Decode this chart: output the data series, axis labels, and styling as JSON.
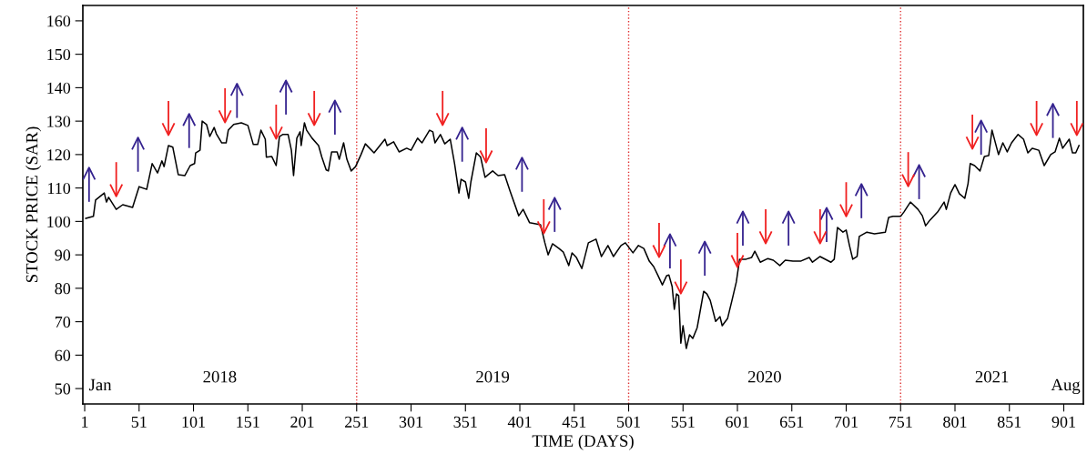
{
  "chart_data": {
    "type": "line",
    "xlabel": "TIME (DAYS)",
    "ylabel": "STOCK PRICE (SAR)",
    "xlim": [
      -0.7,
      919
    ],
    "ylim": [
      45.4,
      164.6
    ],
    "xticks": [
      1,
      51,
      101,
      151,
      201,
      251,
      301,
      351,
      401,
      451,
      501,
      551,
      601,
      651,
      701,
      751,
      801,
      851,
      901
    ],
    "yticks": [
      50,
      60,
      70,
      80,
      90,
      100,
      110,
      120,
      130,
      140,
      150,
      160
    ],
    "series": [
      {
        "color": "#000000",
        "marker": "none",
        "line_style": "solid",
        "x": [
          2,
          9,
          11,
          19,
          21,
          23,
          30,
          36,
          45,
          51,
          58,
          63,
          68,
          72,
          74,
          78,
          82,
          87,
          93,
          98,
          102,
          103,
          107,
          109,
          113,
          116,
          120,
          122,
          127,
          131,
          133,
          138,
          145,
          151,
          156,
          160,
          163,
          167,
          168,
          173,
          177,
          180,
          183,
          188,
          191,
          193,
          196,
          199,
          200,
          203,
          205,
          210,
          216,
          219,
          223,
          225,
          228,
          233,
          235,
          239,
          242,
          246,
          250,
          255,
          259,
          267,
          277,
          279,
          285,
          290,
          297,
          301,
          307,
          311,
          318,
          321,
          323,
          328,
          332,
          337,
          341,
          345,
          347,
          351,
          354,
          356,
          361,
          365,
          369,
          376,
          381,
          387,
          392,
          400,
          404,
          410,
          420,
          424,
          427,
          431,
          437,
          441,
          446,
          449,
          453,
          458,
          464,
          471,
          476,
          482,
          487,
          494,
          498,
          505,
          510,
          515,
          520,
          524,
          528,
          532,
          536,
          538,
          541,
          543,
          545,
          547,
          549,
          551,
          554,
          557,
          560,
          564,
          566,
          570,
          573,
          576,
          581,
          585,
          587,
          592,
          596,
          600,
          603,
          609,
          614,
          617,
          622,
          629,
          634,
          640,
          645,
          652,
          659,
          667,
          670,
          677,
          687,
          690,
          693,
          698,
          701,
          704,
          707,
          711,
          713,
          720,
          727,
          737,
          740,
          744,
          751,
          754,
          760,
          767,
          771,
          774,
          778,
          785,
          791,
          793,
          797,
          801,
          805,
          810,
          813,
          815,
          819,
          824,
          828,
          832,
          835,
          837,
          841,
          845,
          849,
          853,
          859,
          864,
          868,
          872,
          878,
          883,
          889,
          893,
          897,
          900,
          906,
          909,
          912,
          915
        ],
        "values": [
          100.9,
          101.5,
          106.4,
          108.5,
          105.8,
          107.2,
          103.6,
          105,
          104.2,
          110.4,
          109.6,
          117.3,
          114.5,
          118.1,
          116.4,
          122.7,
          122.2,
          114,
          113.7,
          116.7,
          117.3,
          120.5,
          121.3,
          130,
          129,
          125.4,
          128.1,
          126.2,
          123.5,
          123.5,
          127.3,
          129,
          129.5,
          128.7,
          123,
          123,
          127.3,
          124.6,
          119.2,
          119.4,
          116.7,
          125.4,
          126,
          126,
          121.3,
          113.7,
          124.9,
          126.8,
          122.7,
          129.5,
          127.3,
          124.9,
          122.7,
          119.2,
          115.4,
          115.1,
          120.8,
          120.8,
          118.6,
          123.5,
          118.6,
          115.1,
          116.4,
          120,
          123.2,
          120.5,
          124.6,
          122.7,
          123.8,
          120.8,
          121.9,
          121.3,
          124.9,
          123.5,
          127.3,
          126.8,
          123.5,
          126,
          123.2,
          124.6,
          117.3,
          108.5,
          112.6,
          111.8,
          106.9,
          111.8,
          120.5,
          119.2,
          113.2,
          115.1,
          113.7,
          114,
          109.1,
          101.7,
          103.6,
          99.6,
          99,
          93.6,
          90,
          93.3,
          91.9,
          90.8,
          86.8,
          90.6,
          89.2,
          85.9,
          93.6,
          94.7,
          89.5,
          92.8,
          89.5,
          92.8,
          93.6,
          90.6,
          92.8,
          91.9,
          88.1,
          86.5,
          83.8,
          81,
          83.8,
          84,
          80.5,
          73.7,
          78.3,
          77.8,
          63.6,
          68.8,
          62,
          66.1,
          65,
          68.2,
          71.8,
          79.1,
          78.3,
          76.4,
          70.1,
          71.5,
          68.8,
          71,
          76.4,
          81.9,
          88.7,
          88.7,
          89.2,
          91.1,
          87.8,
          88.9,
          88.4,
          86.8,
          88.4,
          88.1,
          88.1,
          89.2,
          87.8,
          89.5,
          87.8,
          88.7,
          98.2,
          96.8,
          97.4,
          92.8,
          88.7,
          89.5,
          95.5,
          96.8,
          96.3,
          96.8,
          101.2,
          101.5,
          101.5,
          102.8,
          105.8,
          103.6,
          101.7,
          98.7,
          100.4,
          102.8,
          105.8,
          103.6,
          108.5,
          111,
          108.3,
          106.9,
          111.3,
          117.3,
          116.7,
          115.1,
          119.4,
          119.7,
          127.3,
          124.9,
          120,
          123.5,
          120.8,
          123.5,
          126,
          124.6,
          120.5,
          121.9,
          121.3,
          116.7,
          120,
          120.8,
          124.9,
          121.9,
          124.6,
          120.5,
          120.5,
          122.7
        ]
      },
      {
        "type": "scatter",
        "color": "#35238f",
        "x": [
          5,
          50,
          97,
          141,
          186,
          231,
          348,
          403,
          433,
          539,
          571,
          606,
          648,
          683,
          715,
          768,
          825,
          891
        ],
        "values": [
          114.3,
          123.3,
          130.4,
          139.4,
          140.4,
          134.4,
          126.3,
          117.3,
          105.3,
          94.4,
          92.2,
          101.2,
          101.2,
          102.3,
          109.4,
          115.1,
          128.4,
          133.4
        ]
      },
      {
        "type": "scatter",
        "color": "#f02020",
        "x": [
          30,
          78,
          130,
          177,
          212,
          330,
          370,
          423,
          529,
          549,
          601,
          627,
          677,
          701,
          758,
          817,
          876,
          913
        ],
        "values": [
          109.3,
          127.6,
          131.4,
          126.5,
          130.6,
          130.6,
          119.4,
          98.2,
          91.1,
          80.2,
          88.1,
          95.2,
          95.2,
          103.3,
          112.3,
          123.5,
          127.6,
          127.6
        ]
      }
    ],
    "ref_lines": [
      {
        "axis": "x",
        "value": 251,
        "color": "#e03030",
        "line_style": "dotted"
      },
      {
        "axis": "x",
        "value": 501,
        "color": "#e03030",
        "line_style": "dotted"
      },
      {
        "axis": "x",
        "value": 751,
        "color": "#e03030",
        "line_style": "dotted"
      }
    ],
    "annotations": [
      "Jan",
      "2018",
      "2019",
      "2020",
      "2021",
      "Aug"
    ]
  }
}
